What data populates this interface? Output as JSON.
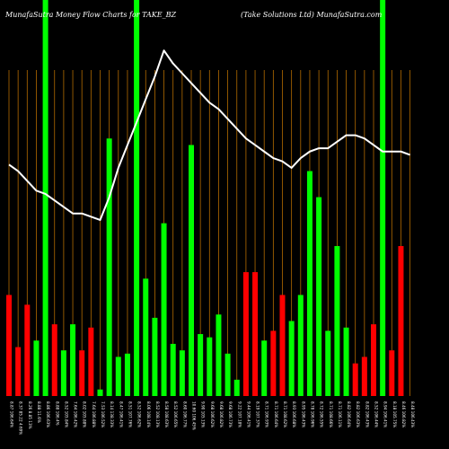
{
  "chart_data": {
    "type": "bar",
    "title_left": "MunafaSutra  Money Flow  Charts for TAKE_BZ",
    "title_right": "(Take   Solutions Ltd) MunafaSutra.com",
    "ylim": [
      0,
      100
    ],
    "grid": "vertical",
    "colors": {
      "up": "#00ff00",
      "down": "#ff0000",
      "spike": "#00ff00",
      "flow_line": "#ffffff",
      "grid": "#b36b00",
      "background": "#000000"
    },
    "categories": [
      "8.87 106.64%",
      "8.37 85.22 4.69%",
      "8.26 8.85 13%",
      "8.88 11.6%",
      "8.86 106.63%",
      "8.88 106.4%",
      "8.52 105.84%",
      "7.64 106.42%",
      "8.02 105.88%",
      "7.64 106.88%",
      "7.53 106.52%",
      "8.14 138.33%",
      "8.47 106.41%",
      "8.51 107.76%",
      "8.52 106.62%",
      "8.06 108.14%",
      "8.52 108.13%",
      "8.58 108.63%",
      "8.52 106.65%",
      "8.60 106.77%",
      "10.60 106.45%",
      "9.90 105.13%",
      "9.68 106.62%",
      "9.68 106.82%",
      "9.68 106.73%",
      "9.22 107.18%",
      "9.44 106.41%",
      "8.19 107.37%",
      "8.71 106.93%",
      "8.71 106.64%",
      "8.71 108.62%",
      "8.93 106.68%",
      "8.95 106.43%",
      "8.78 106.96%",
      "8.72 106.55%",
      "8.71 108.66%",
      "8.71 106.11%",
      "8.82 106.64%",
      "8.82 106.63%",
      "8.82 106.43%",
      "8.52 106.44%",
      "8.94 106.41%",
      "8.18 105.75%",
      "8.46 106.82%",
      "8.48 106.43%"
    ],
    "values": [
      31,
      15,
      28,
      17,
      100,
      22,
      14,
      22,
      14,
      21,
      2,
      79,
      12,
      13,
      100,
      36,
      24,
      53,
      16,
      14,
      77,
      19,
      18,
      25,
      13,
      5,
      38,
      38,
      17,
      20,
      31,
      23,
      31,
      69,
      61,
      20,
      46,
      21,
      10,
      12,
      22,
      100,
      14,
      46,
      0
    ],
    "directions": [
      "down",
      "down",
      "down",
      "up",
      "spike",
      "down",
      "up",
      "up",
      "down",
      "down",
      "up",
      "up",
      "up",
      "up",
      "spike",
      "up",
      "up",
      "up",
      "up",
      "up",
      "up",
      "up",
      "up",
      "up",
      "up",
      "up",
      "down",
      "down",
      "up",
      "down",
      "down",
      "up",
      "up",
      "up",
      "up",
      "up",
      "up",
      "up",
      "down",
      "down",
      "down",
      "spike",
      "down",
      "down",
      "up"
    ],
    "flow_line": [
      71,
      69,
      66,
      63,
      62,
      60,
      58,
      56,
      56,
      55,
      54,
      61,
      70,
      77,
      84,
      91,
      98,
      106,
      102,
      99,
      96,
      93,
      90,
      88,
      85,
      82,
      79,
      77,
      75,
      73,
      72,
      70,
      73,
      75,
      76,
      76,
      78,
      80,
      80,
      79,
      77,
      75,
      75,
      75,
      74
    ]
  }
}
